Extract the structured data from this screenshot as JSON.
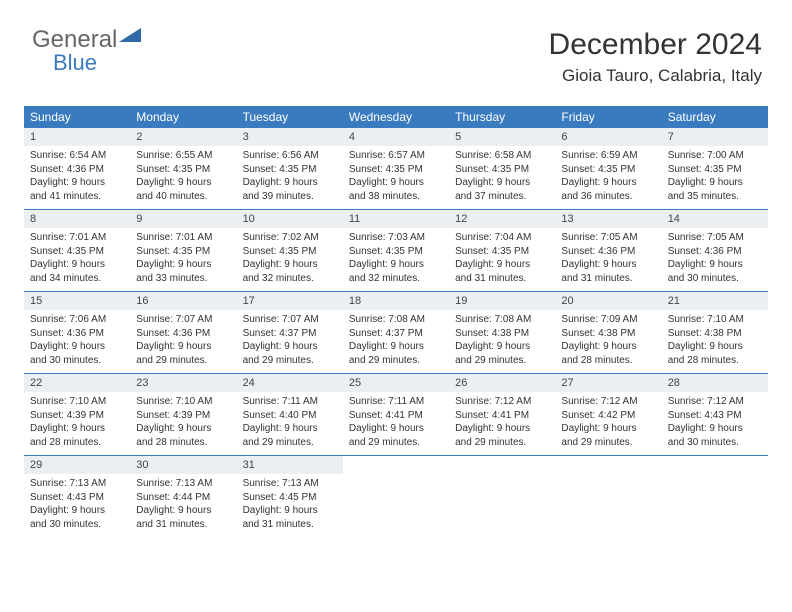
{
  "logo": {
    "text1": "General",
    "text2": "Blue"
  },
  "title": "December 2024",
  "location": "Gioia Tauro, Calabria, Italy",
  "colors": {
    "header_bg": "#3a7bbf",
    "header_text": "#ffffff",
    "daynum_bg": "#eceff1",
    "row_border": "#3a7bbf",
    "body_text": "#333333",
    "page_bg": "#ffffff"
  },
  "typography": {
    "title_fontsize": 30,
    "location_fontsize": 17,
    "header_fontsize": 12,
    "daynum_fontsize": 11,
    "body_fontsize": 10
  },
  "weekdays": [
    "Sunday",
    "Monday",
    "Tuesday",
    "Wednesday",
    "Thursday",
    "Friday",
    "Saturday"
  ],
  "weeks": [
    [
      {
        "n": "1",
        "sr": "Sunrise: 6:54 AM",
        "ss": "Sunset: 4:36 PM",
        "d1": "Daylight: 9 hours",
        "d2": "and 41 minutes."
      },
      {
        "n": "2",
        "sr": "Sunrise: 6:55 AM",
        "ss": "Sunset: 4:35 PM",
        "d1": "Daylight: 9 hours",
        "d2": "and 40 minutes."
      },
      {
        "n": "3",
        "sr": "Sunrise: 6:56 AM",
        "ss": "Sunset: 4:35 PM",
        "d1": "Daylight: 9 hours",
        "d2": "and 39 minutes."
      },
      {
        "n": "4",
        "sr": "Sunrise: 6:57 AM",
        "ss": "Sunset: 4:35 PM",
        "d1": "Daylight: 9 hours",
        "d2": "and 38 minutes."
      },
      {
        "n": "5",
        "sr": "Sunrise: 6:58 AM",
        "ss": "Sunset: 4:35 PM",
        "d1": "Daylight: 9 hours",
        "d2": "and 37 minutes."
      },
      {
        "n": "6",
        "sr": "Sunrise: 6:59 AM",
        "ss": "Sunset: 4:35 PM",
        "d1": "Daylight: 9 hours",
        "d2": "and 36 minutes."
      },
      {
        "n": "7",
        "sr": "Sunrise: 7:00 AM",
        "ss": "Sunset: 4:35 PM",
        "d1": "Daylight: 9 hours",
        "d2": "and 35 minutes."
      }
    ],
    [
      {
        "n": "8",
        "sr": "Sunrise: 7:01 AM",
        "ss": "Sunset: 4:35 PM",
        "d1": "Daylight: 9 hours",
        "d2": "and 34 minutes."
      },
      {
        "n": "9",
        "sr": "Sunrise: 7:01 AM",
        "ss": "Sunset: 4:35 PM",
        "d1": "Daylight: 9 hours",
        "d2": "and 33 minutes."
      },
      {
        "n": "10",
        "sr": "Sunrise: 7:02 AM",
        "ss": "Sunset: 4:35 PM",
        "d1": "Daylight: 9 hours",
        "d2": "and 32 minutes."
      },
      {
        "n": "11",
        "sr": "Sunrise: 7:03 AM",
        "ss": "Sunset: 4:35 PM",
        "d1": "Daylight: 9 hours",
        "d2": "and 32 minutes."
      },
      {
        "n": "12",
        "sr": "Sunrise: 7:04 AM",
        "ss": "Sunset: 4:35 PM",
        "d1": "Daylight: 9 hours",
        "d2": "and 31 minutes."
      },
      {
        "n": "13",
        "sr": "Sunrise: 7:05 AM",
        "ss": "Sunset: 4:36 PM",
        "d1": "Daylight: 9 hours",
        "d2": "and 31 minutes."
      },
      {
        "n": "14",
        "sr": "Sunrise: 7:05 AM",
        "ss": "Sunset: 4:36 PM",
        "d1": "Daylight: 9 hours",
        "d2": "and 30 minutes."
      }
    ],
    [
      {
        "n": "15",
        "sr": "Sunrise: 7:06 AM",
        "ss": "Sunset: 4:36 PM",
        "d1": "Daylight: 9 hours",
        "d2": "and 30 minutes."
      },
      {
        "n": "16",
        "sr": "Sunrise: 7:07 AM",
        "ss": "Sunset: 4:36 PM",
        "d1": "Daylight: 9 hours",
        "d2": "and 29 minutes."
      },
      {
        "n": "17",
        "sr": "Sunrise: 7:07 AM",
        "ss": "Sunset: 4:37 PM",
        "d1": "Daylight: 9 hours",
        "d2": "and 29 minutes."
      },
      {
        "n": "18",
        "sr": "Sunrise: 7:08 AM",
        "ss": "Sunset: 4:37 PM",
        "d1": "Daylight: 9 hours",
        "d2": "and 29 minutes."
      },
      {
        "n": "19",
        "sr": "Sunrise: 7:08 AM",
        "ss": "Sunset: 4:38 PM",
        "d1": "Daylight: 9 hours",
        "d2": "and 29 minutes."
      },
      {
        "n": "20",
        "sr": "Sunrise: 7:09 AM",
        "ss": "Sunset: 4:38 PM",
        "d1": "Daylight: 9 hours",
        "d2": "and 28 minutes."
      },
      {
        "n": "21",
        "sr": "Sunrise: 7:10 AM",
        "ss": "Sunset: 4:38 PM",
        "d1": "Daylight: 9 hours",
        "d2": "and 28 minutes."
      }
    ],
    [
      {
        "n": "22",
        "sr": "Sunrise: 7:10 AM",
        "ss": "Sunset: 4:39 PM",
        "d1": "Daylight: 9 hours",
        "d2": "and 28 minutes."
      },
      {
        "n": "23",
        "sr": "Sunrise: 7:10 AM",
        "ss": "Sunset: 4:39 PM",
        "d1": "Daylight: 9 hours",
        "d2": "and 28 minutes."
      },
      {
        "n": "24",
        "sr": "Sunrise: 7:11 AM",
        "ss": "Sunset: 4:40 PM",
        "d1": "Daylight: 9 hours",
        "d2": "and 29 minutes."
      },
      {
        "n": "25",
        "sr": "Sunrise: 7:11 AM",
        "ss": "Sunset: 4:41 PM",
        "d1": "Daylight: 9 hours",
        "d2": "and 29 minutes."
      },
      {
        "n": "26",
        "sr": "Sunrise: 7:12 AM",
        "ss": "Sunset: 4:41 PM",
        "d1": "Daylight: 9 hours",
        "d2": "and 29 minutes."
      },
      {
        "n": "27",
        "sr": "Sunrise: 7:12 AM",
        "ss": "Sunset: 4:42 PM",
        "d1": "Daylight: 9 hours",
        "d2": "and 29 minutes."
      },
      {
        "n": "28",
        "sr": "Sunrise: 7:12 AM",
        "ss": "Sunset: 4:43 PM",
        "d1": "Daylight: 9 hours",
        "d2": "and 30 minutes."
      }
    ],
    [
      {
        "n": "29",
        "sr": "Sunrise: 7:13 AM",
        "ss": "Sunset: 4:43 PM",
        "d1": "Daylight: 9 hours",
        "d2": "and 30 minutes."
      },
      {
        "n": "30",
        "sr": "Sunrise: 7:13 AM",
        "ss": "Sunset: 4:44 PM",
        "d1": "Daylight: 9 hours",
        "d2": "and 31 minutes."
      },
      {
        "n": "31",
        "sr": "Sunrise: 7:13 AM",
        "ss": "Sunset: 4:45 PM",
        "d1": "Daylight: 9 hours",
        "d2": "and 31 minutes."
      },
      null,
      null,
      null,
      null
    ]
  ]
}
